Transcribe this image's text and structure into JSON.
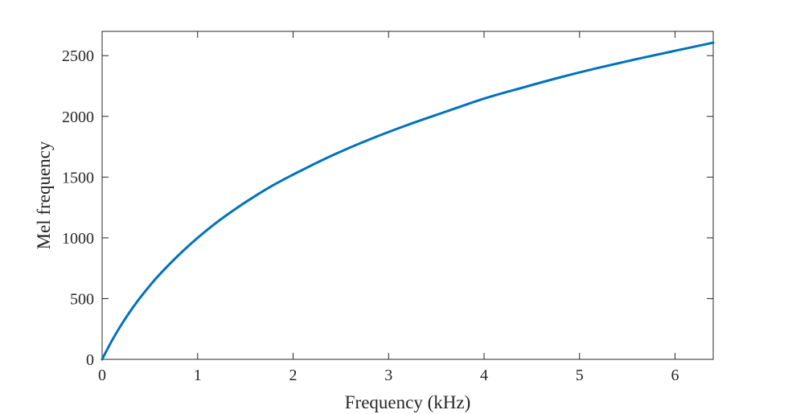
{
  "chart_data": {
    "type": "line",
    "title": "",
    "xlabel": "Frequency (kHz)",
    "ylabel": "Mel frequency",
    "xlim": [
      0,
      6.4
    ],
    "ylim": [
      0,
      2700
    ],
    "x_ticks": [
      0,
      1,
      2,
      3,
      4,
      5,
      6
    ],
    "y_ticks": [
      0,
      500,
      1000,
      1500,
      2000,
      2500
    ],
    "grid": false,
    "box": true,
    "line_color": "#0072bd",
    "axis_color": "#262626",
    "series": [
      {
        "x": [
          0,
          0.1,
          0.2,
          0.3,
          0.4,
          0.5,
          0.6,
          0.8,
          1.0,
          1.2,
          1.4,
          1.6,
          1.8,
          2.0,
          2.4,
          2.8,
          3.2,
          3.6,
          4.0,
          4.4,
          4.8,
          5.2,
          5.6,
          6.0,
          6.4
        ],
        "y": [
          0,
          150,
          283,
          402,
          509,
          607,
          697,
          857,
          1000,
          1127,
          1240,
          1343,
          1437,
          1521,
          1675,
          1810,
          1930,
          2039,
          2146,
          2236,
          2322,
          2400,
          2472,
          2540,
          2607
        ]
      }
    ]
  }
}
